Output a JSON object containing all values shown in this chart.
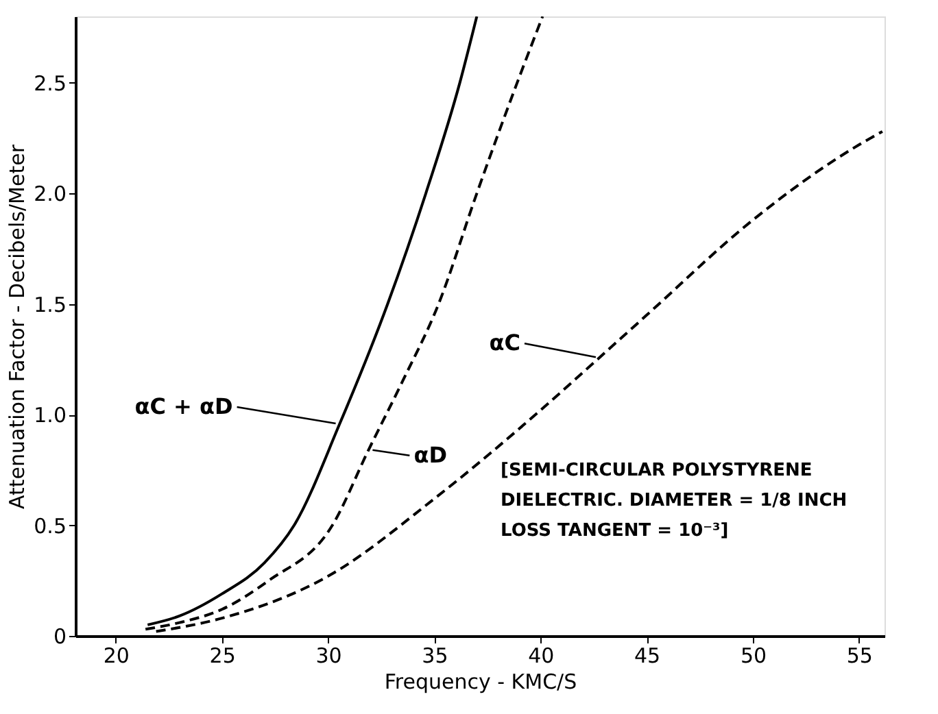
{
  "chart_data": {
    "type": "line",
    "xlabel": "Frequency - KMC/S",
    "ylabel": "Attenuation Factor - Decibels/Meter",
    "xlim": [
      18.1,
      56.2
    ],
    "ylim": [
      0,
      2.8
    ],
    "xticks": [
      20,
      25,
      30,
      35,
      40,
      45,
      50,
      55
    ],
    "yticks": [
      {
        "value": 0,
        "label": "0"
      },
      0.5,
      {
        "value": 1,
        "label": "1.0"
      },
      1.5,
      {
        "value": 2,
        "label": "2.0"
      },
      2.5
    ],
    "grid": false,
    "marker": "none",
    "series": [
      {
        "color": "#000000",
        "line_style": "solid",
        "x": [
          21.5,
          23,
          25,
          27,
          28.4,
          30.55,
          32.8,
          34.6,
          36.2,
          37
        ],
        "values": [
          0.05,
          0.09,
          0.19,
          0.33,
          0.5,
          0.96,
          1.5,
          2.0,
          2.5,
          2.8
        ]
      },
      {
        "color": "#000000",
        "line_style": "dashed",
        "x": [
          21.4,
          23,
          25,
          27.2,
          30.2,
          31.9,
          33.5,
          35.2,
          37,
          38.9,
          40.1
        ],
        "values": [
          0.03,
          0.06,
          0.12,
          0.25,
          0.5,
          0.84,
          1.15,
          1.5,
          2.0,
          2.5,
          2.8
        ]
      },
      {
        "color": "#000000",
        "line_style": "dashed",
        "x": [
          21.9,
          25,
          30,
          35,
          40,
          42.8,
          45,
          50,
          55,
          56.1
        ],
        "values": [
          0.02,
          0.08,
          0.27,
          0.62,
          1.02,
          1.26,
          1.45,
          1.88,
          2.22,
          2.28
        ]
      }
    ],
    "annotations": [
      {
        "text": "αC + αD",
        "x": 30.55,
        "y": 0.96
      },
      {
        "text": "αD",
        "x": 31.9,
        "y": 0.84
      },
      {
        "text": "αC",
        "x": 42.8,
        "y": 1.26
      },
      "[SEMI-CIRCULAR POLYSTYRENE\nDIELECTRIC. DIAMETER = 1/8 INCH\nLOSS TANGENT = 10⁻³]"
    ]
  }
}
